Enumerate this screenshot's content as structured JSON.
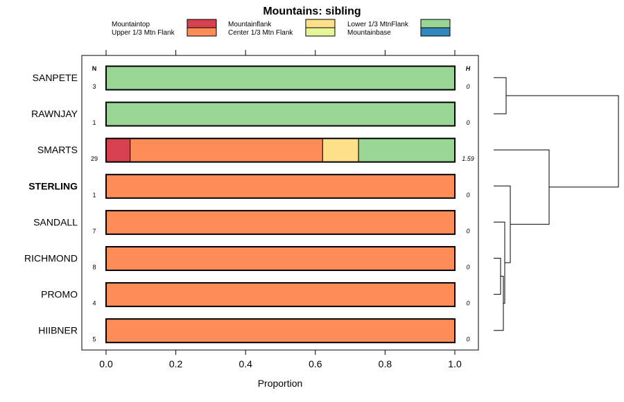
{
  "chart_data": {
    "type": "bar",
    "orientation": "horizontal",
    "stacked": true,
    "title": "Mountains: sibling",
    "xlabel": "Proportion",
    "xlim": [
      0,
      1
    ],
    "xticks": [
      "0.0",
      "0.2",
      "0.4",
      "0.6",
      "0.8",
      "1.0"
    ],
    "n_header": "N",
    "h_header": "H",
    "legend": [
      {
        "name": "Mountaintop",
        "color": "#d7404e"
      },
      {
        "name": "Upper 1/3 Mtn Flank",
        "color": "#fc8d59"
      },
      {
        "name": "Mountainflank",
        "color": "#fee08b"
      },
      {
        "name": "Center 1/3 Mtn Flank",
        "color": "#e6f598"
      },
      {
        "name": "Lower 1/3 MtnFlank",
        "color": "#99d594"
      },
      {
        "name": "Mountainbase",
        "color": "#3288bd"
      }
    ],
    "categories": [
      "SANPETE",
      "RAWNJAY",
      "SMARTS",
      "STERLING",
      "SANDALL",
      "RICHMOND",
      "PROMO",
      "HIIBNER"
    ],
    "highlighted": "STERLING",
    "n": [
      "3",
      "1",
      "29",
      "1",
      "7",
      "8",
      "4",
      "5"
    ],
    "h": [
      "0",
      "0",
      "1.59",
      "0",
      "0",
      "0",
      "0",
      "0"
    ],
    "series": [
      {
        "name": "Mountaintop",
        "values": [
          0,
          0,
          0.069,
          0,
          0,
          0,
          0,
          0
        ]
      },
      {
        "name": "Upper 1/3 Mtn Flank",
        "values": [
          0,
          0,
          0.552,
          1,
          1,
          1,
          1,
          1
        ]
      },
      {
        "name": "Mountainflank",
        "values": [
          0,
          0,
          0.103,
          0,
          0,
          0,
          0,
          0
        ]
      },
      {
        "name": "Center 1/3 Mtn Flank",
        "values": [
          0,
          0,
          0,
          0,
          0,
          0,
          0,
          0
        ]
      },
      {
        "name": "Lower 1/3 MtnFlank",
        "values": [
          1,
          1,
          0.276,
          0,
          0,
          0,
          0,
          0
        ]
      },
      {
        "name": "Mountainbase",
        "values": [
          0,
          0,
          0,
          0,
          0,
          0,
          0,
          0
        ]
      }
    ],
    "dendrogram": {
      "nodes": [
        {
          "join": [
            0,
            1
          ],
          "height": 0.09
        },
        {
          "join": [
            5,
            6
          ],
          "height": 0.05
        },
        {
          "join": [
            "n1",
            7
          ],
          "height": 0.07
        },
        {
          "join": [
            4,
            "n2"
          ],
          "height": 0.08
        },
        {
          "join": [
            3,
            "n3"
          ],
          "height": 0.12
        },
        {
          "join": [
            2,
            "n4"
          ],
          "height": 0.4
        },
        {
          "join": [
            "n0",
            "n5"
          ],
          "height": 0.9
        }
      ]
    }
  }
}
